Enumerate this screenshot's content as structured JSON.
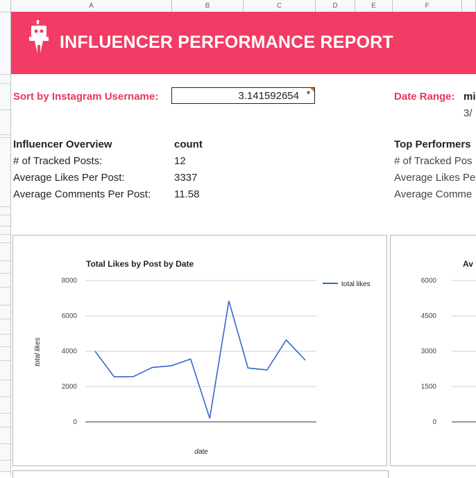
{
  "sheet": {
    "columns": [
      "A",
      "B",
      "C",
      "D",
      "E",
      "F"
    ]
  },
  "banner": {
    "title": "INFLUENCER PERFORMANCE REPORT",
    "bg_color": "#f23c65",
    "logo_icon": "robot-logo-icon"
  },
  "controls": {
    "sort_label": "Sort by Instagram Username:",
    "sort_value": "3.141592654",
    "date_range_label": "Date Range:",
    "date_range_value": "mi",
    "date_range_sub": "3/"
  },
  "overview": {
    "heading": "Influencer Overview",
    "count_heading": "count",
    "rows": [
      {
        "label": "# of Tracked Posts:",
        "value": "12"
      },
      {
        "label": "Average Likes Per Post:",
        "value": "3337"
      },
      {
        "label": "Average Comments Per Post:",
        "value": "11.58"
      }
    ]
  },
  "top_performers": {
    "heading": "Top Performers",
    "rows": [
      "# of Tracked Pos",
      "Average Likes Pe",
      "Average Comme"
    ]
  },
  "chart_data": [
    {
      "type": "line",
      "title": "Total Likes by Post by Date",
      "xlabel": "date",
      "ylabel": "total likes",
      "ylim": [
        0,
        8000
      ],
      "yticks": [
        "8000",
        "6000",
        "4000",
        "2000",
        "0"
      ],
      "legend_position": "right",
      "series": [
        {
          "name": "total likes",
          "color": "#3366cc",
          "values": [
            4000,
            2550,
            2560,
            3080,
            3180,
            3560,
            200,
            6850,
            3050,
            2940,
            4640,
            3490
          ]
        }
      ]
    },
    {
      "type": "line",
      "title": "Av",
      "ylim": [
        0,
        6000
      ],
      "yticks": [
        "6000",
        "4500",
        "3000",
        "1500",
        "0"
      ]
    }
  ]
}
